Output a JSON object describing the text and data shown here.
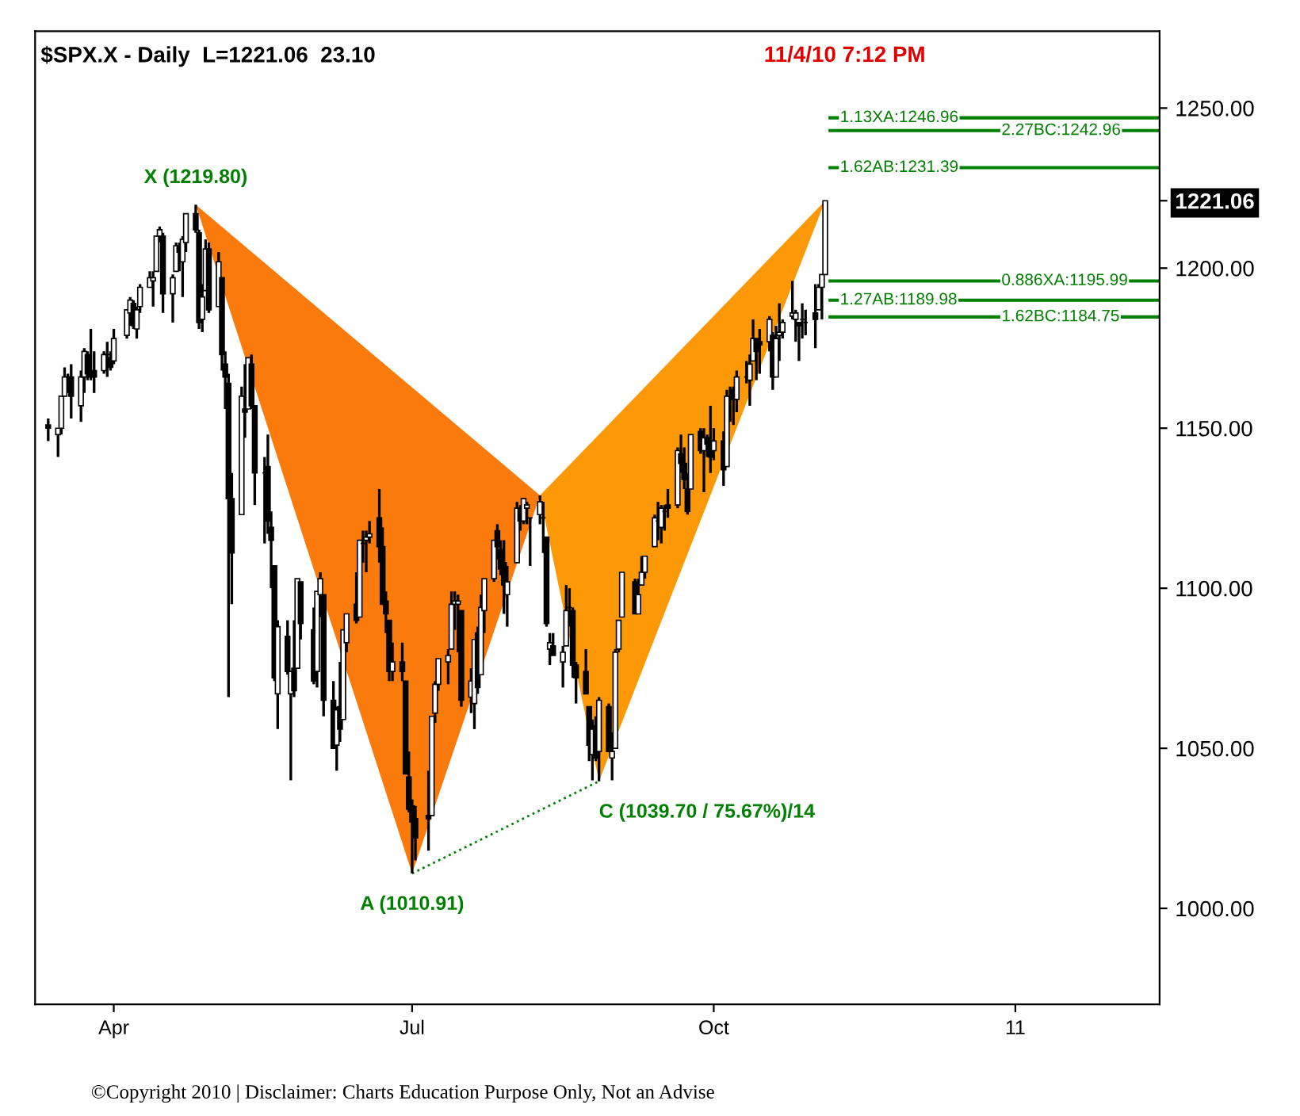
{
  "chart_data": {
    "type": "candlestick",
    "title": "$SPX.X - Daily  L=1221.06  23.10",
    "subtitle": "11/4/10 7:12 PM",
    "x": [
      "2010-03-12",
      "2010-03-15",
      "2010-03-16",
      "2010-03-17",
      "2010-03-18",
      "2010-03-19",
      "2010-03-22",
      "2010-03-23",
      "2010-03-24",
      "2010-03-25",
      "2010-03-26",
      "2010-03-29",
      "2010-03-30",
      "2010-03-31",
      "2010-04-01",
      "2010-04-05",
      "2010-04-06",
      "2010-04-07",
      "2010-04-08",
      "2010-04-09",
      "2010-04-12",
      "2010-04-13",
      "2010-04-14",
      "2010-04-15",
      "2010-04-16",
      "2010-04-19",
      "2010-04-20",
      "2010-04-21",
      "2010-04-22",
      "2010-04-23",
      "2010-04-26",
      "2010-04-27",
      "2010-04-28",
      "2010-04-29",
      "2010-04-30",
      "2010-05-03",
      "2010-05-04",
      "2010-05-05",
      "2010-05-06",
      "2010-05-07",
      "2010-05-10",
      "2010-05-11",
      "2010-05-12",
      "2010-05-13",
      "2010-05-14",
      "2010-05-17",
      "2010-05-18",
      "2010-05-19",
      "2010-05-20",
      "2010-05-21",
      "2010-05-24",
      "2010-05-25",
      "2010-05-26",
      "2010-05-27",
      "2010-05-28",
      "2010-06-01",
      "2010-06-02",
      "2010-06-03",
      "2010-06-04",
      "2010-06-07",
      "2010-06-08",
      "2010-06-09",
      "2010-06-10",
      "2010-06-11",
      "2010-06-14",
      "2010-06-15",
      "2010-06-16",
      "2010-06-17",
      "2010-06-18",
      "2010-06-21",
      "2010-06-22",
      "2010-06-23",
      "2010-06-24",
      "2010-06-25",
      "2010-06-28",
      "2010-06-29",
      "2010-06-30",
      "2010-07-01",
      "2010-07-02",
      "2010-07-06",
      "2010-07-07",
      "2010-07-08",
      "2010-07-09",
      "2010-07-12",
      "2010-07-13",
      "2010-07-14",
      "2010-07-15",
      "2010-07-16",
      "2010-07-19",
      "2010-07-20",
      "2010-07-21",
      "2010-07-22",
      "2010-07-23",
      "2010-07-26",
      "2010-07-27",
      "2010-07-28",
      "2010-07-29",
      "2010-07-30",
      "2010-08-02",
      "2010-08-03",
      "2010-08-04",
      "2010-08-05",
      "2010-08-06",
      "2010-08-09",
      "2010-08-10",
      "2010-08-11",
      "2010-08-12",
      "2010-08-13",
      "2010-08-16",
      "2010-08-17",
      "2010-08-18",
      "2010-08-19",
      "2010-08-20",
      "2010-08-23",
      "2010-08-24",
      "2010-08-25",
      "2010-08-26",
      "2010-08-27",
      "2010-08-30",
      "2010-08-31",
      "2010-09-01",
      "2010-09-02",
      "2010-09-03",
      "2010-09-07",
      "2010-09-08",
      "2010-09-09",
      "2010-09-10",
      "2010-09-13",
      "2010-09-14",
      "2010-09-15",
      "2010-09-16",
      "2010-09-17",
      "2010-09-20",
      "2010-09-21",
      "2010-09-22",
      "2010-09-23",
      "2010-09-24",
      "2010-09-27",
      "2010-09-28",
      "2010-09-29",
      "2010-09-30",
      "2010-10-01",
      "2010-10-04",
      "2010-10-05",
      "2010-10-06",
      "2010-10-07",
      "2010-10-08",
      "2010-10-11",
      "2010-10-12",
      "2010-10-13",
      "2010-10-14",
      "2010-10-15",
      "2010-10-18",
      "2010-10-19",
      "2010-10-20",
      "2010-10-21",
      "2010-10-22",
      "2010-10-25",
      "2010-10-26",
      "2010-10-27",
      "2010-10-28",
      "2010-10-29",
      "2010-11-01",
      "2010-11-02",
      "2010-11-03",
      "2010-11-04"
    ],
    "ohlc": [
      [
        1151,
        1153,
        1146,
        1150
      ],
      [
        1148,
        1150,
        1141,
        1150
      ],
      [
        1150,
        1160,
        1148,
        1160
      ],
      [
        1160,
        1169,
        1160,
        1166
      ],
      [
        1166,
        1167,
        1161,
        1166
      ],
      [
        1166,
        1170,
        1153,
        1160
      ],
      [
        1157,
        1168,
        1152,
        1166
      ],
      [
        1166,
        1175,
        1161,
        1174
      ],
      [
        1173,
        1174,
        1165,
        1167
      ],
      [
        1168,
        1181,
        1165,
        1166
      ],
      [
        1168,
        1174,
        1161,
        1166
      ],
      [
        1168,
        1174,
        1167,
        1173
      ],
      [
        1173,
        1177,
        1166,
        1173
      ],
      [
        1172,
        1174,
        1168,
        1169
      ],
      [
        1171,
        1181,
        1170,
        1178
      ],
      [
        1179,
        1187,
        1178,
        1187
      ],
      [
        1186,
        1191,
        1182,
        1190
      ],
      [
        1189,
        1190,
        1181,
        1182
      ],
      [
        1181,
        1188,
        1178,
        1187
      ],
      [
        1188,
        1195,
        1186,
        1194
      ],
      [
        1194,
        1199,
        1194,
        1197
      ],
      [
        1196,
        1199,
        1188,
        1197
      ],
      [
        1199,
        1210,
        1199,
        1210
      ],
      [
        1210,
        1213,
        1208,
        1212
      ],
      [
        1210,
        1211,
        1186,
        1192
      ],
      [
        1192,
        1198,
        1183,
        1197
      ],
      [
        1199,
        1208,
        1199,
        1207
      ],
      [
        1207,
        1208,
        1199,
        1205
      ],
      [
        1202,
        1210,
        1191,
        1209
      ],
      [
        1208,
        1217,
        1205,
        1217
      ],
      [
        1217,
        1219.8,
        1211,
        1212
      ],
      [
        1211,
        1212,
        1181,
        1183
      ],
      [
        1184,
        1195,
        1180,
        1191
      ],
      [
        1193,
        1209,
        1193,
        1206
      ],
      [
        1206,
        1208,
        1186,
        1187
      ],
      [
        1188,
        1205,
        1188,
        1202
      ],
      [
        1197,
        1197,
        1168,
        1173
      ],
      [
        1170,
        1174,
        1156,
        1166
      ],
      [
        1164,
        1167,
        1066,
        1128
      ],
      [
        1128,
        1136,
        1095,
        1111
      ],
      [
        1123,
        1163,
        1123,
        1160
      ],
      [
        1156,
        1170,
        1147,
        1155
      ],
      [
        1156,
        1172,
        1156,
        1172
      ],
      [
        1170,
        1173,
        1156,
        1157
      ],
      [
        1157,
        1157,
        1126,
        1136
      ],
      [
        1136,
        1141,
        1114,
        1136
      ],
      [
        1138,
        1148,
        1117,
        1121
      ],
      [
        1119,
        1124,
        1100,
        1115
      ],
      [
        1107,
        1107,
        1071,
        1072
      ],
      [
        1067,
        1090,
        1056,
        1088
      ],
      [
        1085,
        1090,
        1073,
        1074
      ],
      [
        1067,
        1074,
        1040,
        1074
      ],
      [
        1075,
        1090,
        1066,
        1068
      ],
      [
        1075,
        1103,
        1075,
        1103
      ],
      [
        1102,
        1102,
        1084,
        1089
      ],
      [
        1087,
        1094,
        1070,
        1071
      ],
      [
        1074,
        1099,
        1069,
        1099
      ],
      [
        1098,
        1105,
        1091,
        1103
      ],
      [
        1098,
        1098,
        1060,
        1065
      ],
      [
        1065,
        1071,
        1050,
        1050
      ],
      [
        1051,
        1063,
        1043,
        1062
      ],
      [
        1063,
        1077,
        1052,
        1056
      ],
      [
        1059,
        1087,
        1059,
        1087
      ],
      [
        1083,
        1092,
        1080,
        1092
      ],
      [
        1095,
        1105,
        1089,
        1090
      ],
      [
        1091,
        1115,
        1091,
        1115
      ],
      [
        1114,
        1118,
        1108,
        1114
      ],
      [
        1115,
        1118,
        1105,
        1116
      ],
      [
        1116,
        1121,
        1114,
        1117
      ],
      [
        1122,
        1131,
        1108,
        1113
      ],
      [
        1113,
        1119,
        1095,
        1095
      ],
      [
        1096,
        1099,
        1086,
        1092
      ],
      [
        1090,
        1090,
        1071,
        1074
      ],
      [
        1074,
        1083,
        1071,
        1077
      ],
      [
        1077,
        1083,
        1071,
        1074
      ],
      [
        1071,
        1071,
        1042,
        1042
      ],
      [
        1041,
        1049,
        1030,
        1031
      ],
      [
        1032,
        1034,
        1010.91,
        1027
      ],
      [
        1028,
        1032,
        1015,
        1022
      ],
      [
        1029,
        1043,
        1018,
        1028
      ],
      [
        1029,
        1060,
        1029,
        1060
      ],
      [
        1061,
        1071,
        1058,
        1070
      ],
      [
        1070,
        1078,
        1068,
        1078
      ],
      [
        1077,
        1081,
        1070,
        1079
      ],
      [
        1081,
        1099,
        1081,
        1095
      ],
      [
        1095,
        1099,
        1087,
        1096
      ],
      [
        1095,
        1098,
        1080,
        1096
      ],
      [
        1093,
        1093,
        1063,
        1065
      ],
      [
        1066,
        1075,
        1061,
        1071
      ],
      [
        1064,
        1084,
        1056,
        1084
      ],
      [
        1086,
        1088,
        1067,
        1069
      ],
      [
        1073,
        1098,
        1073,
        1094
      ],
      [
        1093,
        1103,
        1086,
        1103
      ],
      [
        1103,
        1115,
        1102,
        1115
      ],
      [
        1118,
        1120,
        1109,
        1113
      ],
      [
        1112,
        1115,
        1104,
        1106
      ],
      [
        1108,
        1115,
        1092,
        1101
      ],
      [
        1098,
        1107,
        1088,
        1102
      ],
      [
        1108,
        1127,
        1108,
        1125
      ],
      [
        1125,
        1126,
        1118,
        1121
      ],
      [
        1121,
        1128,
        1120,
        1128
      ],
      [
        1125,
        1127,
        1120,
        1126
      ],
      [
        1122,
        1122,
        1107,
        1122
      ],
      [
        1123,
        1129,
        1120,
        1127
      ],
      [
        1122,
        1127,
        1111,
        1122
      ],
      [
        1116,
        1116,
        1088,
        1089
      ],
      [
        1081,
        1086,
        1076,
        1083
      ],
      [
        1082,
        1086,
        1079,
        1079
      ],
      [
        1077,
        1082,
        1069,
        1080
      ],
      [
        1082,
        1101,
        1082,
        1093
      ],
      [
        1094,
        1100,
        1088,
        1094
      ],
      [
        1093,
        1094,
        1072,
        1076
      ],
      [
        1076,
        1077,
        1064,
        1072
      ],
      [
        1074,
        1081,
        1067,
        1067
      ],
      [
        1063,
        1063,
        1046,
        1051
      ],
      [
        1048,
        1059,
        1040,
        1056
      ],
      [
        1057,
        1060,
        1046,
        1047
      ],
      [
        1049,
        1066,
        1039.7,
        1065
      ],
      [
        1063,
        1064,
        1049,
        1049
      ],
      [
        1047,
        1055,
        1040,
        1049
      ],
      [
        1050,
        1081,
        1050,
        1080
      ],
      [
        1081,
        1090,
        1080,
        1090
      ],
      [
        1091,
        1105,
        1091,
        1105
      ],
      [
        1102,
        1103,
        1092,
        1092
      ],
      [
        1092,
        1103,
        1092,
        1098
      ],
      [
        1101,
        1110,
        1101,
        1105
      ],
      [
        1105,
        1110,
        1103,
        1110
      ],
      [
        1113,
        1123,
        1113,
        1122
      ],
      [
        1121,
        1127,
        1115,
        1121
      ],
      [
        1119,
        1126,
        1114,
        1125
      ],
      [
        1124,
        1126,
        1118,
        1124
      ],
      [
        1126,
        1131,
        1122,
        1125
      ],
      [
        1126,
        1144,
        1125,
        1143
      ],
      [
        1142,
        1148,
        1136,
        1139
      ],
      [
        1139,
        1144,
        1131,
        1134
      ],
      [
        1131,
        1136,
        1123,
        1124
      ],
      [
        1131,
        1148,
        1131,
        1148
      ],
      [
        1149,
        1150,
        1142,
        1143
      ],
      [
        1143,
        1150,
        1130,
        1147
      ],
      [
        1147,
        1148,
        1141,
        1145
      ],
      [
        1146,
        1157,
        1136,
        1141
      ],
      [
        1143,
        1150,
        1140,
        1146
      ],
      [
        1146,
        1149,
        1132,
        1137
      ],
      [
        1138,
        1162,
        1138,
        1160
      ],
      [
        1160,
        1163,
        1152,
        1160
      ],
      [
        1162,
        1163,
        1151,
        1159
      ],
      [
        1159,
        1168,
        1155,
        1166
      ],
      [
        1166,
        1171,
        1164,
        1166
      ],
      [
        1165,
        1173,
        1157,
        1170
      ],
      [
        1171,
        1184,
        1171,
        1178
      ],
      [
        1178,
        1178,
        1165,
        1174
      ],
      [
        1177,
        1181,
        1167,
        1176
      ],
      [
        1177,
        1185,
        1174,
        1184
      ],
      [
        1179,
        1180,
        1162,
        1166
      ],
      [
        1166,
        1182,
        1166,
        1178
      ],
      [
        1179,
        1189,
        1171,
        1180
      ],
      [
        1180,
        1184,
        1178,
        1183
      ],
      [
        1185,
        1196,
        1184,
        1186
      ],
      [
        1184,
        1187,
        1177,
        1186
      ],
      [
        1183,
        1183,
        1171,
        1182
      ],
      [
        1184,
        1189,
        1178,
        1184
      ],
      [
        1183,
        1187,
        1179,
        1183
      ],
      [
        1186,
        1195,
        1175,
        1184
      ],
      [
        1187,
        1195,
        1187,
        1194
      ],
      [
        1194,
        1198,
        1184,
        1198
      ],
      [
        1198,
        1221.06,
        1198,
        1221.06
      ]
    ],
    "color": "#000000",
    "series": [
      {
        "type": "area",
        "color": "#fb7a0c",
        "x": [
          "2010-04-26",
          "2010-07-01",
          "2010-08-09",
          "2010-04-26"
        ],
        "values": [
          1219.8,
          1010.91,
          1129,
          1219.8
        ]
      },
      {
        "type": "area",
        "color": "#fd9806",
        "x": [
          "2010-08-09",
          "2010-08-27",
          "2010-11-04",
          "2010-08-09"
        ],
        "values": [
          1129,
          1039.7,
          1221.06,
          1129
        ]
      },
      {
        "type": "line",
        "color": "#008000",
        "line_style": "dotted",
        "x": [
          "2010-07-01",
          "2010-08-27"
        ],
        "values": [
          1010.91,
          1039.7
        ]
      }
    ],
    "annotations": [
      {
        "text": "X (1219.80)",
        "x": "2010-04-26",
        "y": 1219.8
      },
      {
        "text": "A (1010.91)",
        "x": "2010-07-01",
        "y": 1010.91
      },
      {
        "text": "C (1039.70 / 75.67%)/14",
        "x": "2010-08-27",
        "y": 1039.7
      },
      "©Copyright 2010 | Disclaimer: Charts Education Purpose Only, Not an Advise"
    ],
    "ref_lines": [
      {
        "axis": "y",
        "value": 1246.96,
        "label": "1.13XA:1246.96",
        "color": "#008000"
      },
      {
        "axis": "y",
        "value": 1242.96,
        "label": "2.27BC:1242.96",
        "color": "#008000"
      },
      {
        "axis": "y",
        "value": 1231.39,
        "label": "1.62AB:1231.39",
        "color": "#008000"
      },
      {
        "axis": "y",
        "value": 1195.99,
        "label": "0.886XA:1195.99",
        "color": "#008000"
      },
      {
        "axis": "y",
        "value": 1189.98,
        "label": "1.27AB:1189.98",
        "color": "#008000"
      },
      {
        "axis": "y",
        "value": 1184.75,
        "label": "1.62BC:1184.75",
        "color": "#008000"
      }
    ],
    "xlim": [
      "2010-03-08",
      "2011-02-14"
    ],
    "xticks": [
      {
        "value": "2010-04-01",
        "label": "Apr"
      },
      {
        "value": "2010-07-01",
        "label": "Jul"
      },
      {
        "value": "2010-10-01",
        "label": "Oct"
      },
      {
        "value": "2011-01-01",
        "label": "11"
      }
    ],
    "ylim": [
      970,
      1274
    ],
    "yticks": [
      {
        "value": 1000,
        "label": "1000.00"
      },
      {
        "value": 1050,
        "label": "1050.00"
      },
      {
        "value": 1100,
        "label": "1100.00"
      },
      {
        "value": 1150,
        "label": "1150.00"
      },
      {
        "value": 1200,
        "label": "1200.00"
      },
      {
        "value": 1221.06,
        "label": "1221.06"
      },
      {
        "value": 1250,
        "label": "1250.00"
      }
    ],
    "grid": false,
    "legend": false
  }
}
